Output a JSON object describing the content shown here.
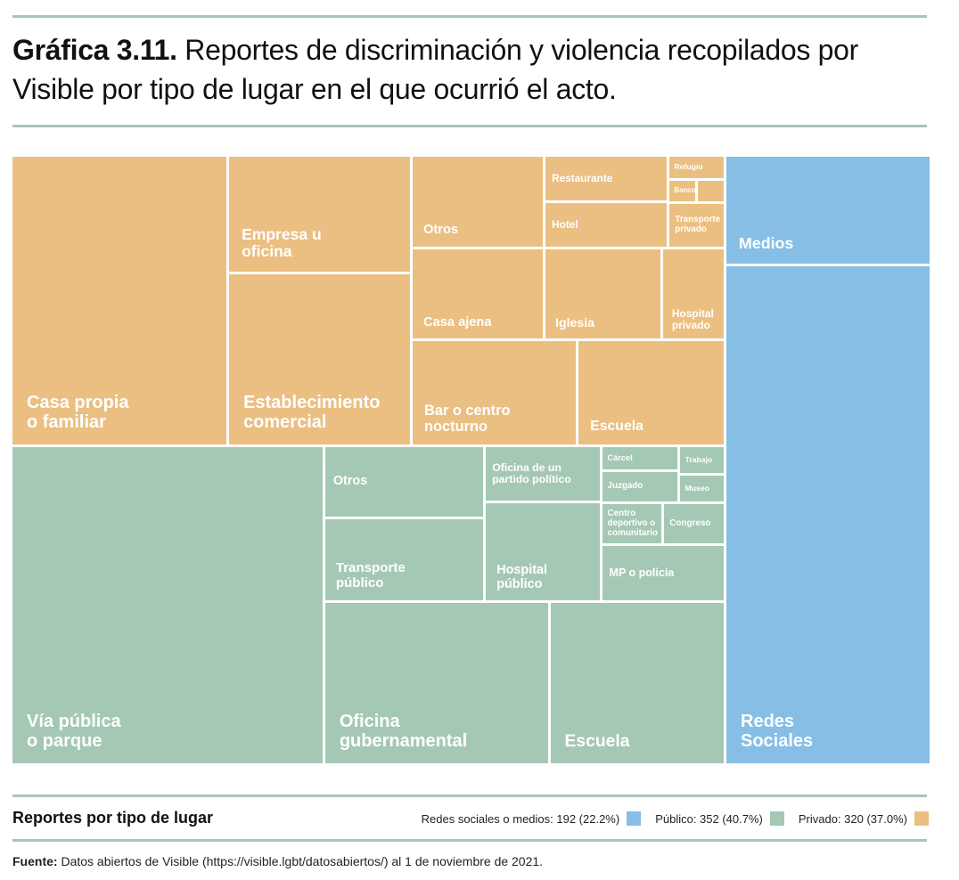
{
  "chart_data": {
    "type": "treemap",
    "title_label": "Gráfica 3.11.",
    "title": "Reportes de discriminación y violencia recopilados por Visible por tipo de lugar en el que ocurrió el acto.",
    "legend_title": "Reportes por tipo de lugar",
    "source_label": "Fuente:",
    "source": "Datos abiertos de Visible (https://visible.lgbt/datosabiertos/) al 1 de noviembre de 2021.",
    "series": [
      {
        "name": "Redes sociales o medios: 192 (22.2%)",
        "total": 192,
        "share": 22.2,
        "color": "#86bee6",
        "categories": [
          "Medios",
          "Redes\nSociales"
        ],
        "values": [
          34,
          158
        ]
      },
      {
        "name": "Público: 352 (40.7%)",
        "total": 352,
        "share": 40.7,
        "color": "#a5c8b4",
        "categories": [
          "Vía pública\no parque",
          "Otros",
          "Transporte\npúblico",
          "Oficina de un\npartido político",
          "Hospital\npúblico",
          "Cárcel",
          "Trabajo",
          "Juzgado",
          "Museo",
          "Centro\ndeportivo o\ncomunitario",
          "Congreso",
          "MP o policía",
          "Oficina\ngubernamental",
          "Escuela"
        ],
        "values": [
          154,
          18,
          21,
          10,
          18,
          3,
          2,
          4,
          2,
          4,
          4,
          11,
          57,
          44
        ]
      },
      {
        "name": "Privado: 320 (37.0%)",
        "total": 320,
        "share": 37.0,
        "color": "#ebbf82",
        "categories": [
          "Casa propia\no familiar",
          "Empresa u\noficina",
          "Establecimiento\ncomercial",
          "Otros",
          "Casa ajena",
          "Restaurante",
          "Hotel",
          "Refugio",
          "Banco",
          null,
          "Transporte\nprivado",
          "Iglesia",
          "Hospital\nprivado",
          "Bar o centro\nnocturno",
          "Escuela"
        ],
        "values": [
          97,
          33,
          49,
          19,
          19,
          9,
          9,
          2,
          1,
          1,
          4,
          17,
          9,
          27,
          24
        ]
      }
    ]
  }
}
